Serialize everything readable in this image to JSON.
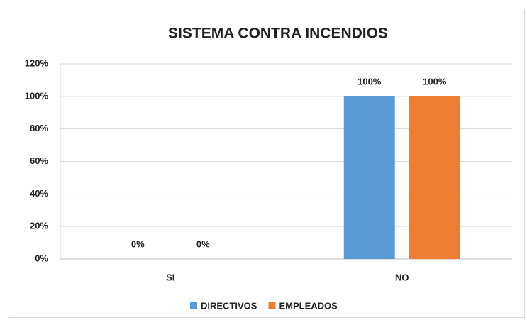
{
  "chart_data": {
    "type": "bar",
    "title": "SISTEMA CONTRA INCENDIOS",
    "categories": [
      "SI",
      "NO"
    ],
    "series": [
      {
        "name": "DIRECTIVOS",
        "color": "#5b9bd5",
        "values": [
          0,
          100
        ],
        "value_labels": [
          "0%",
          "100%"
        ]
      },
      {
        "name": "EMPLEADOS",
        "color": "#ed7d31",
        "values": [
          0,
          100
        ],
        "value_labels": [
          "0%",
          "100%"
        ]
      }
    ],
    "ylim": [
      0,
      120
    ],
    "yticks": [
      {
        "value": 0,
        "label": "0%"
      },
      {
        "value": 20,
        "label": "20%"
      },
      {
        "value": 40,
        "label": "40%"
      },
      {
        "value": 60,
        "label": "60%"
      },
      {
        "value": 80,
        "label": "80%"
      },
      {
        "value": 100,
        "label": "100%"
      },
      {
        "value": 120,
        "label": "120%"
      }
    ],
    "grid": true,
    "legend": "bottom"
  }
}
